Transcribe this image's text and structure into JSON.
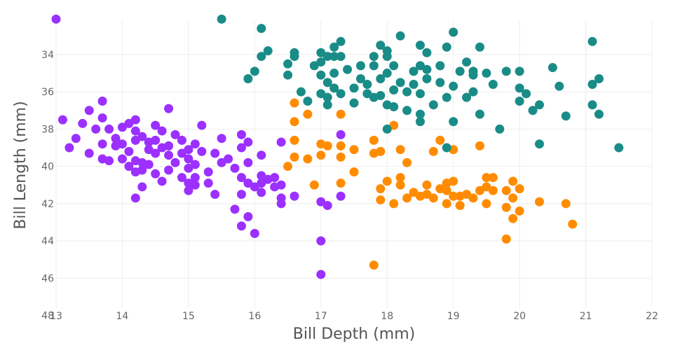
{
  "chart_data": {
    "type": "scatter",
    "xlabel": "Bill Depth (mm)",
    "ylabel": "Bill Length (mm)",
    "xlim": [
      13,
      22
    ],
    "ylim": [
      32.2,
      47.6
    ],
    "y_reversed": true,
    "grid": true,
    "x_ticks": [
      13,
      14,
      15,
      16,
      17,
      18,
      19,
      20,
      21,
      22
    ],
    "y_ticks": [
      34,
      36,
      38,
      40,
      42,
      44,
      46,
      48
    ],
    "series": [
      {
        "color": "#9B30FF",
        "points": [
          [
            13.0,
            32.1
          ],
          [
            13.1,
            37.5
          ],
          [
            13.2,
            39.0
          ],
          [
            13.3,
            38.5
          ],
          [
            13.4,
            37.7
          ],
          [
            13.5,
            37.0
          ],
          [
            13.5,
            39.3
          ],
          [
            13.6,
            38.0
          ],
          [
            13.7,
            36.5
          ],
          [
            13.7,
            37.4
          ],
          [
            13.7,
            38.8
          ],
          [
            13.7,
            39.6
          ],
          [
            13.8,
            38.0
          ],
          [
            13.8,
            39.7
          ],
          [
            13.9,
            38.5
          ],
          [
            13.9,
            38.9
          ],
          [
            14.0,
            37.9
          ],
          [
            14.0,
            38.8
          ],
          [
            14.0,
            39.6
          ],
          [
            14.1,
            37.7
          ],
          [
            14.1,
            39.2
          ],
          [
            14.1,
            40.0
          ],
          [
            14.2,
            38.1
          ],
          [
            14.2,
            38.6
          ],
          [
            14.2,
            39.7
          ],
          [
            14.2,
            40.3
          ],
          [
            14.2,
            41.7
          ],
          [
            14.2,
            37.5
          ],
          [
            14.3,
            39.8
          ],
          [
            14.3,
            40.2
          ],
          [
            14.3,
            41.1
          ],
          [
            14.3,
            38.4
          ],
          [
            14.4,
            38.7
          ],
          [
            14.4,
            39.1
          ],
          [
            14.4,
            39.9
          ],
          [
            14.5,
            37.8
          ],
          [
            14.5,
            38.6
          ],
          [
            14.5,
            39.3
          ],
          [
            14.5,
            40.4
          ],
          [
            14.6,
            39.0
          ],
          [
            14.6,
            40.8
          ],
          [
            14.6,
            38.1
          ],
          [
            14.7,
            38.9
          ],
          [
            14.7,
            39.4
          ],
          [
            14.7,
            40.2
          ],
          [
            14.7,
            36.9
          ],
          [
            14.8,
            38.3
          ],
          [
            14.8,
            39.8
          ],
          [
            14.9,
            38.6
          ],
          [
            14.9,
            39.3
          ],
          [
            14.9,
            40.6
          ],
          [
            15.0,
            39.1
          ],
          [
            15.0,
            39.6
          ],
          [
            15.0,
            40.1
          ],
          [
            15.0,
            40.9
          ],
          [
            15.0,
            41.3
          ],
          [
            15.1,
            38.8
          ],
          [
            15.1,
            39.9
          ],
          [
            15.1,
            40.6
          ],
          [
            15.1,
            41.0
          ],
          [
            15.2,
            37.8
          ],
          [
            15.2,
            39.2
          ],
          [
            15.3,
            40.3
          ],
          [
            15.3,
            40.9
          ],
          [
            15.4,
            39.3
          ],
          [
            15.4,
            41.5
          ],
          [
            15.5,
            38.5
          ],
          [
            15.5,
            39.8
          ],
          [
            15.6,
            39.6
          ],
          [
            15.7,
            40.1
          ],
          [
            15.7,
            42.3
          ],
          [
            15.8,
            38.3
          ],
          [
            15.8,
            39.0
          ],
          [
            15.8,
            40.6
          ],
          [
            15.8,
            41.5
          ],
          [
            15.8,
            43.2
          ],
          [
            15.9,
            38.7
          ],
          [
            15.9,
            39.8
          ],
          [
            15.9,
            40.9
          ],
          [
            15.9,
            42.7
          ],
          [
            16.0,
            41.1
          ],
          [
            16.0,
            43.6
          ],
          [
            16.1,
            39.4
          ],
          [
            16.1,
            40.5
          ],
          [
            16.1,
            40.9
          ],
          [
            16.1,
            41.4
          ],
          [
            16.2,
            40.7
          ],
          [
            16.3,
            41.1
          ],
          [
            16.3,
            40.6
          ],
          [
            16.4,
            41.7
          ],
          [
            16.4,
            42.0
          ],
          [
            16.4,
            41.0
          ],
          [
            16.4,
            38.7
          ],
          [
            16.6,
            41.6
          ],
          [
            17.0,
            41.9
          ],
          [
            17.0,
            44.0
          ],
          [
            17.0,
            45.8
          ],
          [
            17.1,
            42.1
          ],
          [
            17.3,
            38.3
          ],
          [
            17.3,
            41.6
          ]
        ]
      },
      {
        "color": "#FF8C00",
        "points": [
          [
            16.5,
            40.0
          ],
          [
            16.6,
            36.6
          ],
          [
            16.6,
            37.6
          ],
          [
            16.6,
            38.6
          ],
          [
            16.6,
            39.5
          ],
          [
            16.8,
            37.2
          ],
          [
            16.8,
            39.6
          ],
          [
            16.9,
            41.0
          ],
          [
            17.0,
            38.8
          ],
          [
            17.0,
            39.4
          ],
          [
            17.1,
            38.9
          ],
          [
            17.3,
            37.2
          ],
          [
            17.3,
            38.9
          ],
          [
            17.3,
            39.5
          ],
          [
            17.3,
            40.9
          ],
          [
            17.5,
            39.1
          ],
          [
            17.5,
            40.3
          ],
          [
            17.8,
            38.6
          ],
          [
            17.8,
            39.3
          ],
          [
            17.8,
            45.3
          ],
          [
            17.9,
            39.2
          ],
          [
            17.9,
            41.2
          ],
          [
            17.9,
            41.8
          ],
          [
            18.0,
            40.8
          ],
          [
            18.1,
            37.8
          ],
          [
            18.1,
            42.0
          ],
          [
            18.2,
            39.1
          ],
          [
            18.2,
            40.6
          ],
          [
            18.2,
            41.0
          ],
          [
            18.3,
            41.7
          ],
          [
            18.3,
            39.8
          ],
          [
            18.4,
            41.4
          ],
          [
            18.5,
            41.6
          ],
          [
            18.6,
            41.0
          ],
          [
            18.6,
            41.5
          ],
          [
            18.7,
            39.2
          ],
          [
            18.7,
            41.7
          ],
          [
            18.8,
            38.6
          ],
          [
            18.8,
            41.2
          ],
          [
            18.9,
            40.9
          ],
          [
            18.9,
            41.3
          ],
          [
            18.9,
            42.0
          ],
          [
            19.0,
            39.1
          ],
          [
            19.0,
            41.6
          ],
          [
            19.0,
            40.8
          ],
          [
            19.1,
            42.1
          ],
          [
            19.1,
            41.6
          ],
          [
            19.2,
            41.5
          ],
          [
            19.3,
            41.7
          ],
          [
            19.4,
            38.9
          ],
          [
            19.4,
            41.3
          ],
          [
            19.5,
            40.6
          ],
          [
            19.5,
            41.1
          ],
          [
            19.5,
            42.0
          ],
          [
            19.6,
            40.6
          ],
          [
            19.6,
            41.3
          ],
          [
            19.8,
            41.3
          ],
          [
            19.8,
            42.2
          ],
          [
            19.8,
            43.9
          ],
          [
            19.9,
            40.8
          ],
          [
            19.9,
            41.7
          ],
          [
            19.9,
            42.8
          ],
          [
            20.0,
            41.2
          ],
          [
            20.0,
            42.4
          ],
          [
            20.3,
            41.9
          ],
          [
            20.7,
            42.0
          ],
          [
            20.8,
            43.1
          ]
        ]
      },
      {
        "color": "#1A8C87",
        "points": [
          [
            15.5,
            32.1
          ],
          [
            15.9,
            35.3
          ],
          [
            16.0,
            34.9
          ],
          [
            16.1,
            32.6
          ],
          [
            16.1,
            34.1
          ],
          [
            16.2,
            33.8
          ],
          [
            16.5,
            34.5
          ],
          [
            16.5,
            35.1
          ],
          [
            16.6,
            34.1
          ],
          [
            16.6,
            33.9
          ],
          [
            16.7,
            36.0
          ],
          [
            16.8,
            36.5
          ],
          [
            16.9,
            34.6
          ],
          [
            17.0,
            33.9
          ],
          [
            17.0,
            34.4
          ],
          [
            17.0,
            35.1
          ],
          [
            17.0,
            36.1
          ],
          [
            17.1,
            35.5
          ],
          [
            17.1,
            34.1
          ],
          [
            17.1,
            36.3
          ],
          [
            17.1,
            36.7
          ],
          [
            17.2,
            33.6
          ],
          [
            17.2,
            34.1
          ],
          [
            17.2,
            35.0
          ],
          [
            17.2,
            35.8
          ],
          [
            17.3,
            33.3
          ],
          [
            17.3,
            34.1
          ],
          [
            17.3,
            36.1
          ],
          [
            17.4,
            34.8
          ],
          [
            17.5,
            35.8
          ],
          [
            17.5,
            36.6
          ],
          [
            17.6,
            35.3
          ],
          [
            17.6,
            34.6
          ],
          [
            17.7,
            35.6
          ],
          [
            17.7,
            36.1
          ],
          [
            17.8,
            34.1
          ],
          [
            17.8,
            34.6
          ],
          [
            17.9,
            33.5
          ],
          [
            17.9,
            35.3
          ],
          [
            17.9,
            36.2
          ],
          [
            18.0,
            34.1
          ],
          [
            18.0,
            35.0
          ],
          [
            18.0,
            36.7
          ],
          [
            18.0,
            33.8
          ],
          [
            18.1,
            34.6
          ],
          [
            18.1,
            35.9
          ],
          [
            18.1,
            36.8
          ],
          [
            18.2,
            35.5
          ],
          [
            18.2,
            33.0
          ],
          [
            18.3,
            36.0
          ],
          [
            18.4,
            34.9
          ],
          [
            18.4,
            35.6
          ],
          [
            18.5,
            33.5
          ],
          [
            18.5,
            34.6
          ],
          [
            18.5,
            36.1
          ],
          [
            18.5,
            37.2
          ],
          [
            18.6,
            33.9
          ],
          [
            18.6,
            34.8
          ],
          [
            18.6,
            35.3
          ],
          [
            18.7,
            36.7
          ],
          [
            18.8,
            35.5
          ],
          [
            18.8,
            34.6
          ],
          [
            18.9,
            36.3
          ],
          [
            18.9,
            33.6
          ],
          [
            19.0,
            32.8
          ],
          [
            19.0,
            35.7
          ],
          [
            19.0,
            37.6
          ],
          [
            19.1,
            34.9
          ],
          [
            19.2,
            34.4
          ],
          [
            19.2,
            36.3
          ],
          [
            19.3,
            34.9
          ],
          [
            19.3,
            35.1
          ],
          [
            19.4,
            33.6
          ],
          [
            19.4,
            37.2
          ],
          [
            19.5,
            35.0
          ],
          [
            19.6,
            35.6
          ],
          [
            19.7,
            38.0
          ],
          [
            19.8,
            34.9
          ],
          [
            20.0,
            34.9
          ],
          [
            20.0,
            35.8
          ],
          [
            20.0,
            36.5
          ],
          [
            20.1,
            36.1
          ],
          [
            20.2,
            37.0
          ],
          [
            20.3,
            36.7
          ],
          [
            20.3,
            38.8
          ],
          [
            20.5,
            34.7
          ],
          [
            20.6,
            35.7
          ],
          [
            20.7,
            37.3
          ],
          [
            21.1,
            33.3
          ],
          [
            21.1,
            35.6
          ],
          [
            21.1,
            36.7
          ],
          [
            21.2,
            35.3
          ],
          [
            21.2,
            37.2
          ],
          [
            21.5,
            39.0
          ],
          [
            18.0,
            38.0
          ],
          [
            18.9,
            39.0
          ],
          [
            18.5,
            37.6
          ],
          [
            17.8,
            36.3
          ],
          [
            18.3,
            37.0
          ],
          [
            19.3,
            36.0
          ]
        ]
      }
    ]
  }
}
